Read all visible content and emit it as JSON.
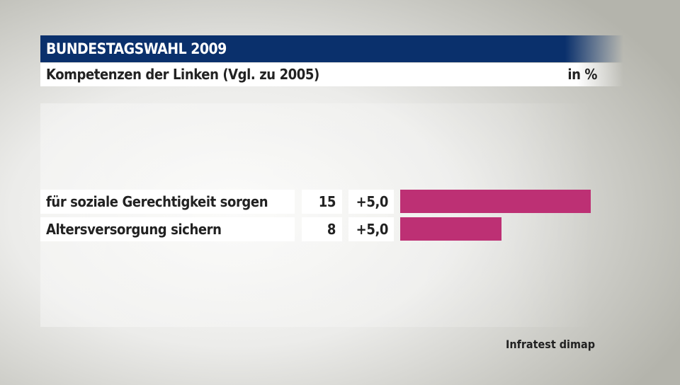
{
  "header": {
    "title": "BUNDESTAGSWAHL 2009",
    "subtitle": "Kompetenzen der Linken (Vgl. zu 2005)",
    "unit": "in %"
  },
  "chart_data": {
    "type": "bar",
    "orientation": "horizontal",
    "categories": [
      "für soziale Gerechtigkeit sorgen",
      "Altersversorgung sichern"
    ],
    "values": [
      15,
      8
    ],
    "changes": [
      "+5,0",
      "+5,0"
    ],
    "color": "#bd3074"
  },
  "source": "Infratest dimap"
}
